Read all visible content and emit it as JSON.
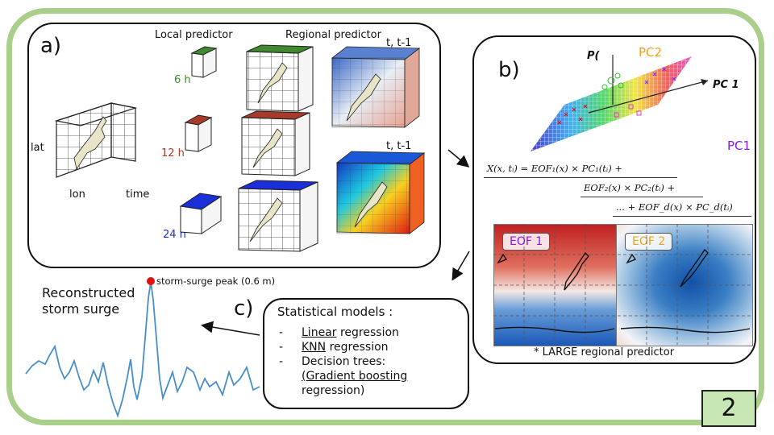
{
  "page_number": "2",
  "panel_a": {
    "tag": "a)",
    "local_title": "Local predictor",
    "regional_title": "Regional predictor",
    "time_labels": [
      "t, t-1",
      "t, t-1"
    ],
    "lead_times": [
      "6 h",
      "12 h",
      "24 h"
    ],
    "lead_colors": [
      "#3f8a2e",
      "#a83a2a",
      "#1a2fd8"
    ],
    "axis_lat": "lat",
    "axis_lon": "lon",
    "axis_time": "time"
  },
  "panel_b": {
    "tag": "b)",
    "pc_labels": {
      "p": "P(",
      "pc2": "PC2",
      "pc1_axis": "PC 1",
      "pc1": "PC1"
    },
    "eq_lines": [
      "X(x, tᵢ) = EOF₁(x) × PC₁(tᵢ) +",
      "EOF₂(x) × PC₂(tᵢ) +",
      "... + EOF_d(x) × PC_d(tᵢ)"
    ],
    "eof_labels": [
      "EOF 1",
      "EOF 2"
    ],
    "footnote": "* LARGE regional predictor"
  },
  "panel_c": {
    "tag": "c)",
    "title": "Statistical models :",
    "items": [
      {
        "u": "Linear",
        "rest": " regression"
      },
      {
        "u": "KNN",
        "rest": " regression"
      },
      {
        "u": "",
        "rest": "Decision trees:"
      },
      {
        "u": "(Gradient  boosting",
        "rest": ""
      },
      {
        "u": "",
        "rest": "regression)"
      }
    ]
  },
  "surge": {
    "title_line1": "Reconstructed",
    "title_line2": "storm surge",
    "peak_label": "storm-surge peak (0.6 m)"
  },
  "colors": {
    "frame": "#a9cf8a",
    "surge_line": "#4a8ec8",
    "peak": "#e01010",
    "pc2": "#f0a020",
    "pc1": "#8a18e6"
  }
}
